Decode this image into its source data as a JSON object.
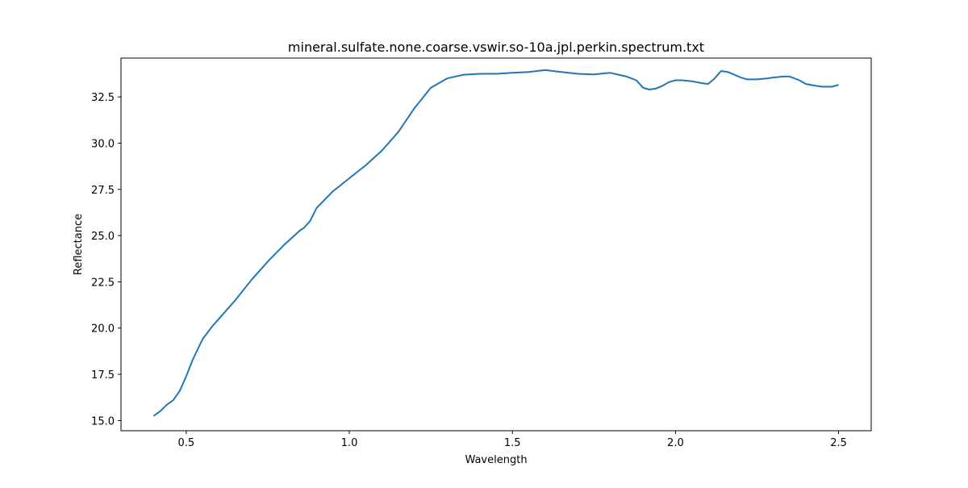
{
  "chart_data": {
    "type": "line",
    "title": "mineral.sulfate.none.coarse.vswir.so-10a.jpl.perkin.spectrum.txt",
    "xlabel": "Wavelength",
    "ylabel": "Reflectance",
    "xlim": [
      0.3,
      2.6
    ],
    "ylim": [
      14.45,
      34.6
    ],
    "xticks": [
      0.5,
      1.0,
      1.5,
      2.0,
      2.5
    ],
    "xtick_labels": [
      "0.5",
      "1.0",
      "1.5",
      "2.0",
      "2.5"
    ],
    "yticks": [
      15.0,
      17.5,
      20.0,
      22.5,
      25.0,
      27.5,
      30.0,
      32.5
    ],
    "ytick_labels": [
      "15.0",
      "17.5",
      "20.0",
      "22.5",
      "25.0",
      "27.5",
      "30.0",
      "32.5"
    ],
    "grid": false,
    "series": [
      {
        "color": "#1f77b4",
        "x": [
          0.4,
          0.42,
          0.44,
          0.46,
          0.48,
          0.5,
          0.52,
          0.55,
          0.58,
          0.6,
          0.65,
          0.7,
          0.75,
          0.8,
          0.85,
          0.86,
          0.88,
          0.9,
          0.95,
          1.0,
          1.05,
          1.1,
          1.15,
          1.2,
          1.25,
          1.3,
          1.35,
          1.4,
          1.45,
          1.5,
          1.55,
          1.6,
          1.65,
          1.7,
          1.75,
          1.8,
          1.85,
          1.88,
          1.9,
          1.92,
          1.94,
          1.96,
          1.98,
          2.0,
          2.02,
          2.05,
          2.08,
          2.1,
          2.12,
          2.14,
          2.16,
          2.18,
          2.2,
          2.22,
          2.25,
          2.28,
          2.3,
          2.33,
          2.35,
          2.38,
          2.4,
          2.43,
          2.45,
          2.48,
          2.5
        ],
        "y": [
          15.25,
          15.5,
          15.85,
          16.1,
          16.6,
          17.4,
          18.3,
          19.4,
          20.1,
          20.5,
          21.5,
          22.6,
          23.6,
          24.5,
          25.3,
          25.4,
          25.8,
          26.5,
          27.4,
          28.1,
          28.8,
          29.6,
          30.6,
          31.9,
          33.0,
          33.5,
          33.7,
          33.75,
          33.75,
          33.8,
          33.85,
          33.95,
          33.85,
          33.75,
          33.72,
          33.8,
          33.6,
          33.4,
          33.0,
          32.9,
          32.95,
          33.1,
          33.3,
          33.4,
          33.4,
          33.35,
          33.25,
          33.2,
          33.5,
          33.9,
          33.85,
          33.7,
          33.55,
          33.45,
          33.45,
          33.5,
          33.55,
          33.6,
          33.6,
          33.4,
          33.2,
          33.1,
          33.05,
          33.05,
          33.15
        ]
      }
    ]
  }
}
